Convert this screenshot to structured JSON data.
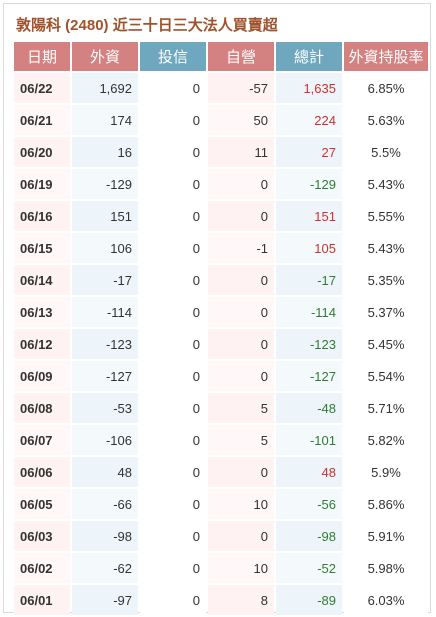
{
  "title": "敦陽科 (2480) 近三十日三大法人買賣超",
  "headers": {
    "date": "日期",
    "foreign": "外資",
    "trust": "投信",
    "dealer": "自營",
    "total": "總計",
    "foreign_holding": "外資持股率"
  },
  "colors": {
    "header_red": "#d38181",
    "header_blue": "#6fa8be",
    "title": "#a0522d",
    "positive": "#d32f2f",
    "negative": "#2e7d32"
  },
  "rows": [
    {
      "date": "06/22",
      "foreign": "1,692",
      "trust": "0",
      "dealer": "-57",
      "total": "1,635",
      "holding": "6.85%"
    },
    {
      "date": "06/21",
      "foreign": "174",
      "trust": "0",
      "dealer": "50",
      "total": "224",
      "holding": "5.63%"
    },
    {
      "date": "06/20",
      "foreign": "16",
      "trust": "0",
      "dealer": "11",
      "total": "27",
      "holding": "5.5%"
    },
    {
      "date": "06/19",
      "foreign": "-129",
      "trust": "0",
      "dealer": "0",
      "total": "-129",
      "holding": "5.43%"
    },
    {
      "date": "06/16",
      "foreign": "151",
      "trust": "0",
      "dealer": "0",
      "total": "151",
      "holding": "5.55%"
    },
    {
      "date": "06/15",
      "foreign": "106",
      "trust": "0",
      "dealer": "-1",
      "total": "105",
      "holding": "5.43%"
    },
    {
      "date": "06/14",
      "foreign": "-17",
      "trust": "0",
      "dealer": "0",
      "total": "-17",
      "holding": "5.35%"
    },
    {
      "date": "06/13",
      "foreign": "-114",
      "trust": "0",
      "dealer": "0",
      "total": "-114",
      "holding": "5.37%"
    },
    {
      "date": "06/12",
      "foreign": "-123",
      "trust": "0",
      "dealer": "0",
      "total": "-123",
      "holding": "5.45%"
    },
    {
      "date": "06/09",
      "foreign": "-127",
      "trust": "0",
      "dealer": "0",
      "total": "-127",
      "holding": "5.54%"
    },
    {
      "date": "06/08",
      "foreign": "-53",
      "trust": "0",
      "dealer": "5",
      "total": "-48",
      "holding": "5.71%"
    },
    {
      "date": "06/07",
      "foreign": "-106",
      "trust": "0",
      "dealer": "5",
      "total": "-101",
      "holding": "5.82%"
    },
    {
      "date": "06/06",
      "foreign": "48",
      "trust": "0",
      "dealer": "0",
      "total": "48",
      "holding": "5.9%"
    },
    {
      "date": "06/05",
      "foreign": "-66",
      "trust": "0",
      "dealer": "10",
      "total": "-56",
      "holding": "5.86%"
    },
    {
      "date": "06/03",
      "foreign": "-98",
      "trust": "0",
      "dealer": "0",
      "total": "-98",
      "holding": "5.91%"
    },
    {
      "date": "06/02",
      "foreign": "-62",
      "trust": "0",
      "dealer": "10",
      "total": "-52",
      "holding": "5.98%"
    },
    {
      "date": "06/01",
      "foreign": "-97",
      "trust": "0",
      "dealer": "8",
      "total": "-89",
      "holding": "6.03%"
    }
  ]
}
